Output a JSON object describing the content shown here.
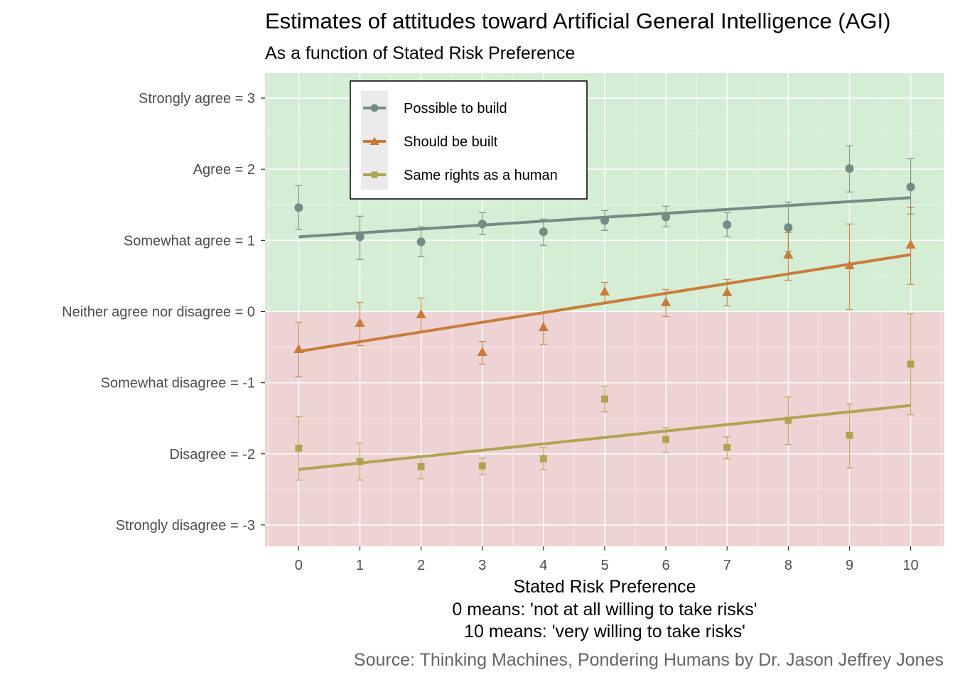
{
  "chart_data": {
    "type": "scatter",
    "title": "Estimates of attitudes toward Artificial General Intelligence (AGI)",
    "subtitle": "As a function of Stated Risk Preference",
    "xlabel_lines": [
      "Stated Risk Preference",
      "0 means: 'not at all willing to take risks'",
      "10 means: 'very willing to take risks'"
    ],
    "caption": "Source: Thinking Machines, Pondering Humans by Dr. Jason Jeffrey Jones",
    "xlim": [
      -0.55,
      10.55
    ],
    "ylim": [
      -3.3,
      3.35
    ],
    "x_ticks": [
      0,
      1,
      2,
      3,
      4,
      5,
      6,
      7,
      8,
      9,
      10
    ],
    "y_ticks": [
      {
        "value": 3,
        "label": "Strongly agree = 3"
      },
      {
        "value": 2,
        "label": "Agree = 2"
      },
      {
        "value": 1,
        "label": "Somewhat agree = 1"
      },
      {
        "value": 0,
        "label": "Neither agree nor disagree = 0"
      },
      {
        "value": -1,
        "label": "Somewhat disagree = -1"
      },
      {
        "value": -2,
        "label": "Disagree = -2"
      },
      {
        "value": -3,
        "label": "Strongly disagree = -3"
      }
    ],
    "regions": [
      {
        "name": "agree-region",
        "from": 0,
        "to": 3.35,
        "color": "#d4edd4"
      },
      {
        "name": "disagree-region",
        "from": -3.3,
        "to": 0,
        "color": "#eed3d4"
      }
    ],
    "legend_position": "top-left",
    "series": [
      {
        "name": "Possible to build",
        "color": "#778b85",
        "marker": "circle",
        "x": [
          0,
          1,
          2,
          3,
          4,
          5,
          6,
          7,
          8,
          9,
          10
        ],
        "values": [
          1.46,
          1.05,
          0.98,
          1.23,
          1.12,
          1.28,
          1.33,
          1.22,
          1.18,
          2.01,
          1.75
        ],
        "ci_low": [
          1.15,
          0.73,
          0.77,
          1.08,
          0.93,
          1.14,
          1.19,
          1.05,
          0.84,
          1.68,
          1.37
        ],
        "ci_high": [
          1.77,
          1.34,
          1.19,
          1.39,
          1.3,
          1.42,
          1.48,
          1.39,
          1.54,
          2.33,
          2.15
        ],
        "fit": [
          1.05,
          1.6
        ]
      },
      {
        "name": "Should be built",
        "color": "#c97b3a",
        "marker": "triangle",
        "x": [
          0,
          1,
          2,
          3,
          4,
          5,
          6,
          7,
          8,
          9,
          10
        ],
        "values": [
          -0.53,
          -0.16,
          -0.04,
          -0.57,
          -0.22,
          0.28,
          0.13,
          0.27,
          0.8,
          0.65,
          0.94
        ],
        "ci_low": [
          -0.92,
          -0.48,
          -0.29,
          -0.74,
          -0.46,
          0.12,
          -0.07,
          0.08,
          0.44,
          0.03,
          0.38
        ],
        "ci_high": [
          -0.15,
          0.13,
          0.19,
          -0.42,
          -0.01,
          0.41,
          0.31,
          0.45,
          1.11,
          1.23,
          1.46
        ],
        "fit": [
          -0.56,
          0.8
        ]
      },
      {
        "name": "Same rights as a human",
        "color": "#b0a452",
        "marker": "square",
        "x": [
          0,
          1,
          2,
          3,
          4,
          5,
          6,
          7,
          8,
          9,
          10
        ],
        "values": [
          -1.92,
          -2.11,
          -2.18,
          -2.17,
          -2.07,
          -1.23,
          -1.8,
          -1.91,
          -1.53,
          -1.74,
          -0.74
        ],
        "ci_low": [
          -2.37,
          -2.37,
          -2.35,
          -2.29,
          -2.22,
          -1.41,
          -1.98,
          -2.07,
          -1.87,
          -2.2,
          -1.45
        ],
        "ci_high": [
          -1.48,
          -1.85,
          -2.03,
          -2.06,
          -1.91,
          -1.05,
          -1.63,
          -1.76,
          -1.2,
          -1.3,
          -0.03
        ],
        "fit": [
          -2.22,
          -1.32
        ]
      }
    ]
  }
}
